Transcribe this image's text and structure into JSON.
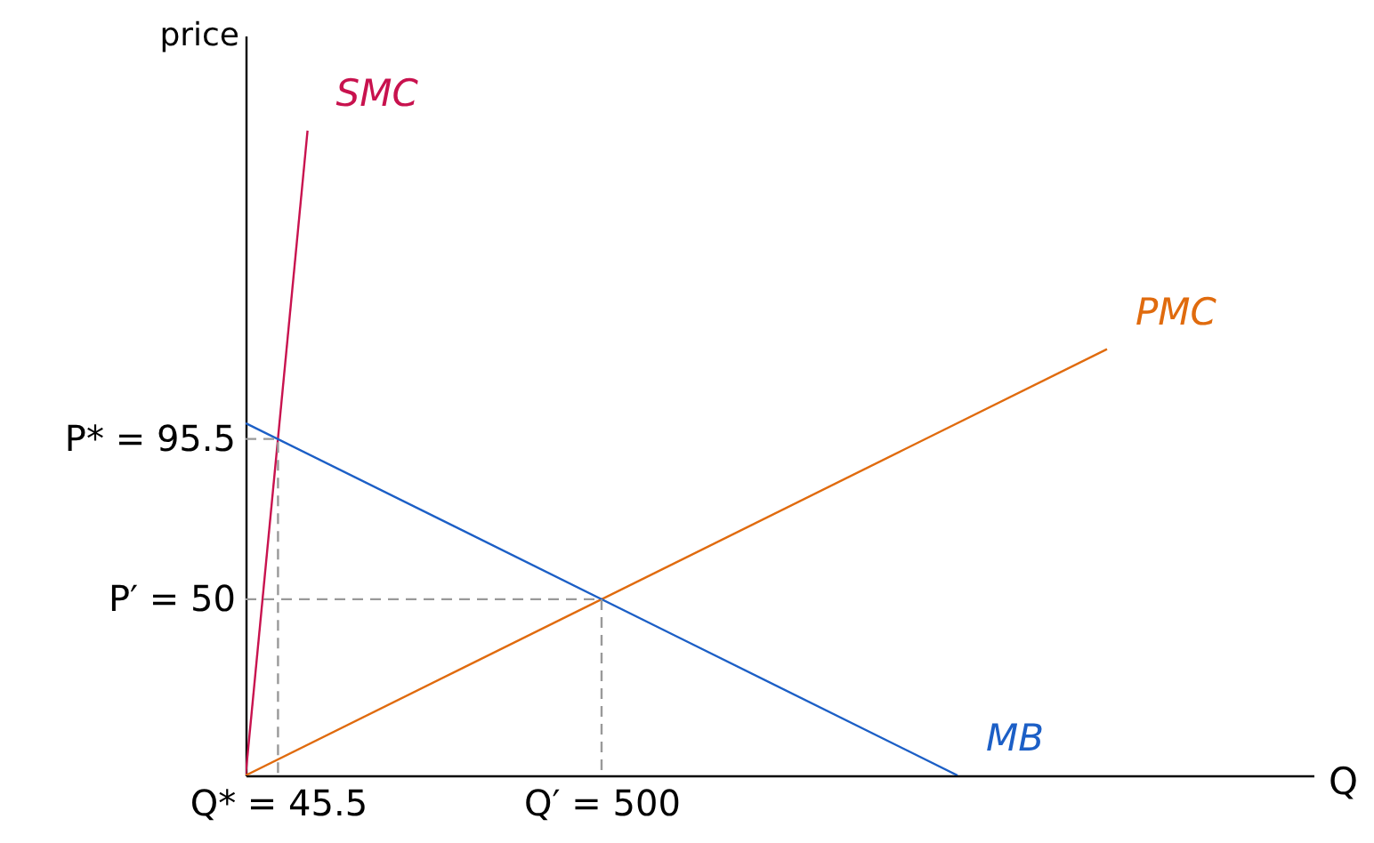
{
  "chart_data": {
    "type": "line",
    "xlabel": "Q",
    "ylabel": "price",
    "xlim": [
      0,
      1500
    ],
    "ylim": [
      0,
      210
    ],
    "xticks": [
      {
        "value": 45.5,
        "label": "Q* = 45.5"
      },
      {
        "value": 500,
        "label": "Q′ = 500"
      }
    ],
    "yticks": [
      {
        "value": 50,
        "label": "P′ = 50"
      },
      {
        "value": 95.5,
        "label": "P* = 95.5"
      }
    ],
    "series": [
      {
        "name": "SMC",
        "color": "#c8124e",
        "x": [
          0,
          87
        ],
        "values": [
          0,
          183
        ]
      },
      {
        "name": "PMC",
        "color": "#e06b0e",
        "x": [
          0,
          1210
        ],
        "values": [
          0,
          121
        ]
      },
      {
        "name": "MB",
        "color": "#1c5fc6",
        "x": [
          0,
          1000
        ],
        "values": [
          100,
          0
        ]
      },
      {
        "color": "#999999",
        "line_style": "dashed",
        "x": [
          0,
          45.5,
          45.5
        ],
        "values": [
          95.5,
          95.5,
          0
        ]
      },
      {
        "color": "#999999",
        "line_style": "dashed",
        "x": [
          0,
          500,
          500
        ],
        "values": [
          50,
          50,
          0
        ]
      }
    ]
  }
}
